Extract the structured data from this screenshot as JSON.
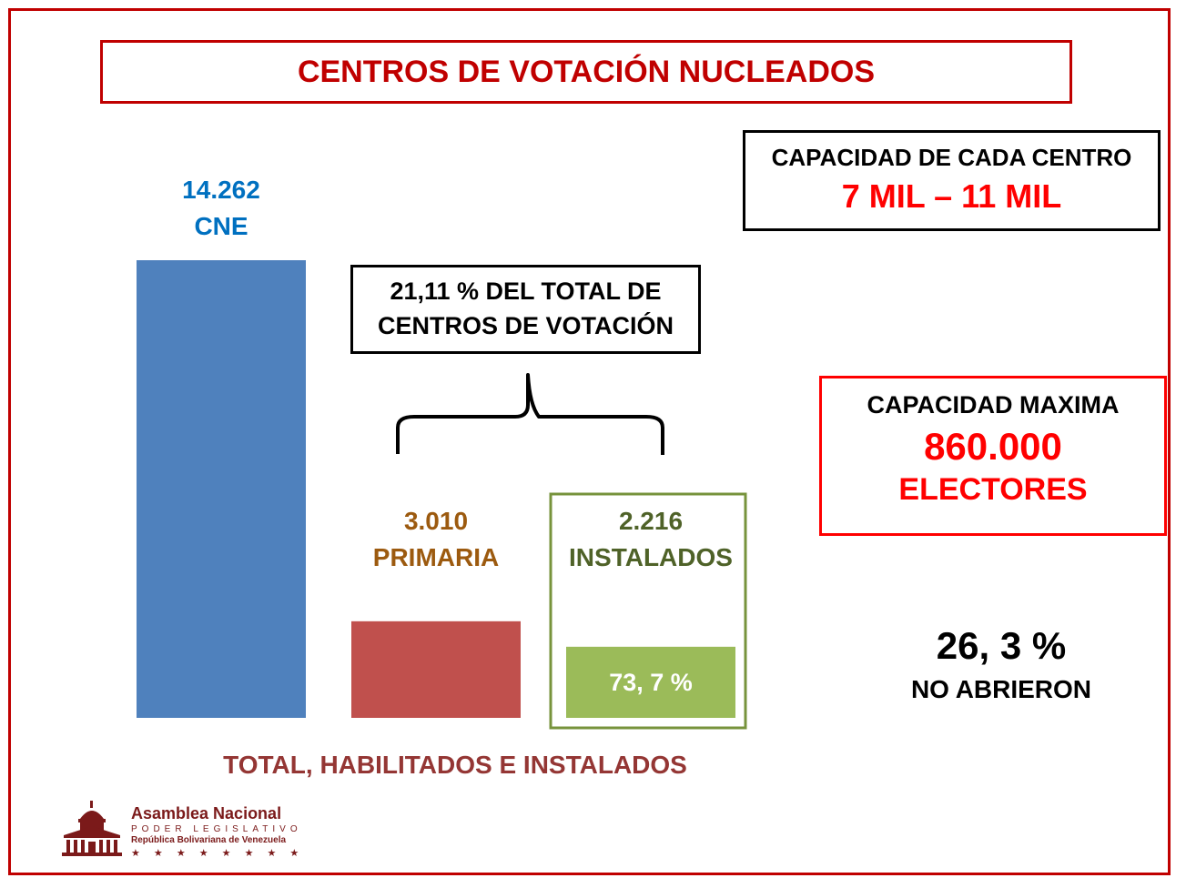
{
  "title": "CENTROS DE VOTACIÓN NUCLEADOS",
  "capacity_each": {
    "label": "CAPACIDAD DE CADA CENTRO",
    "value": "7 MIL – 11 MIL"
  },
  "percentage_box": {
    "line1": "21,11 % DEL TOTAL DE",
    "line2": "CENTROS DE VOTACIÓN"
  },
  "capacity_max": {
    "label": "CAPACIDAD MAXIMA",
    "value": "860.000",
    "unit": "ELECTORES"
  },
  "no_abrieron": {
    "pct": "26, 3 %",
    "label": "NO ABRIERON"
  },
  "logo": {
    "name": "Asamblea Nacional",
    "sub1": "PODER LEGISLATIVO",
    "sub2": "República Bolivariana de Venezuela",
    "stars": "★ ★ ★ ★ ★ ★ ★ ★"
  },
  "chart_data": {
    "type": "bar",
    "title": "CENTROS DE VOTACIÓN NUCLEADOS",
    "xlabel": "TOTAL, HABILITADOS E INSTALADOS",
    "ylabel": "",
    "ylim": [
      0,
      14262
    ],
    "categories": [
      "CNE",
      "PRIMARIA",
      "INSTALADOS"
    ],
    "values": [
      14262,
      3010,
      2216
    ],
    "value_labels": [
      "14.262",
      "3.010",
      "2.216"
    ],
    "colors": [
      "#4f81bd",
      "#c0504d",
      "#9bbb59"
    ],
    "label_colors": [
      "#0070c0",
      "#9c5a0f",
      "#4f6228"
    ],
    "inner_label": "73, 7 %"
  }
}
